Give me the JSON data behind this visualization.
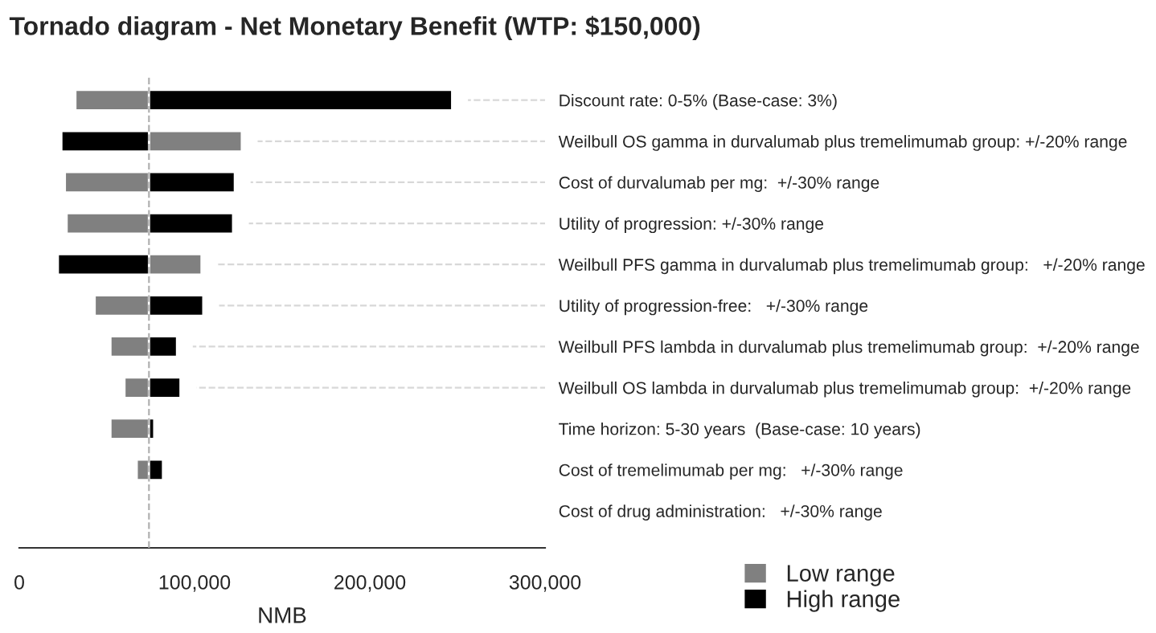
{
  "chart_data": {
    "type": "bar",
    "orientation": "horizontal",
    "title": "Tornado diagram - Net Monetary Benefit (WTP: $150,000)",
    "xlabel": "NMB",
    "categories": [
      "Discount rate: 0-5% (Base-case: 3%)",
      "Weilbull OS gamma in durvalumab plus tremelimumab group: +/-20% range",
      "Cost of durvalumab per mg:  +/-30% range",
      "Utility of progression: +/-30% range",
      "Weilbull PFS gamma in durvalumab plus tremelimumab group:   +/-20% range",
      "Utility of progression-free:   +/-30% range",
      "Weilbull PFS lambda in durvalumab plus tremelimumab group:  +/-20% range",
      "Weilbull OS lambda in durvalumab plus tremelimumab group:  +/-20% range",
      "Time horizon: 5-30 years  (Base-case: 10 years)",
      "Cost of tremelimumab per mg:   +/-30% range",
      "Cost of drug administration:   +/-30% range"
    ],
    "series": [
      {
        "name": "Low range",
        "color": "#808080",
        "base": [
          32000,
          74000,
          26000,
          27000,
          74000,
          43000,
          52000,
          60000,
          52000,
          67000,
          73000
        ],
        "values": [
          42000,
          53000,
          48000,
          47000,
          30000,
          31000,
          22000,
          14000,
          22000,
          7000,
          1000
        ]
      },
      {
        "name": "High range",
        "color": "#000000",
        "base": [
          74000,
          24000,
          74000,
          74000,
          22000,
          74000,
          74000,
          74000,
          74000,
          74000,
          null
        ],
        "values": [
          173000,
          50000,
          49000,
          48000,
          52000,
          31000,
          16000,
          18000,
          3000,
          8000,
          null
        ]
      }
    ],
    "xlim": [
      0,
      300000
    ],
    "xticks": [
      {
        "value": 0,
        "label": "0"
      },
      {
        "value": 100000,
        "label": "100,000"
      },
      {
        "value": 200000,
        "label": "200,000"
      },
      {
        "value": 300000,
        "label": "300,000"
      }
    ],
    "ref_lines": [
      {
        "axis": "x",
        "value": 74000,
        "color": "#b0b0b0",
        "line_style": "dashed"
      }
    ],
    "grid": "y",
    "legend": "bottom right"
  }
}
